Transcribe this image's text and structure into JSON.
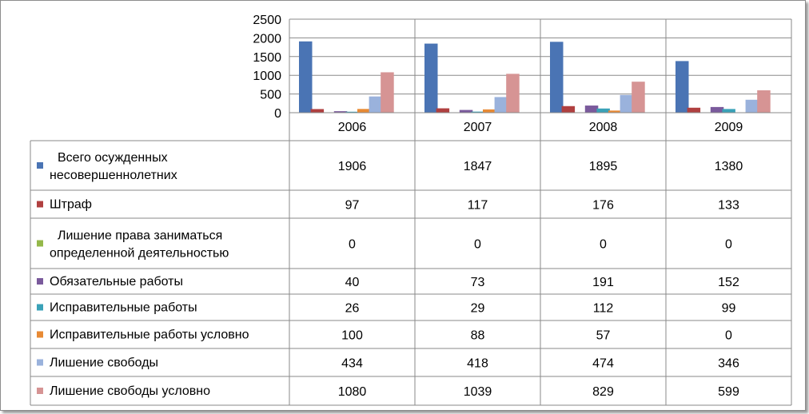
{
  "chart_data": {
    "type": "bar",
    "categories": [
      "2006",
      "2007",
      "2008",
      "2009"
    ],
    "yticks": [
      "0",
      "500",
      "1000",
      "1500",
      "2000",
      "2500"
    ],
    "ylim": [
      0,
      2500
    ],
    "grid": "horizontal",
    "legend": "data-table",
    "series": [
      {
        "name": "Всего осужденных несовершеннолетних",
        "label_lines": [
          "Всего осужденных",
          "несовершеннолетних"
        ],
        "color": "#4a74b4",
        "values": [
          1906,
          1847,
          1895,
          1380
        ]
      },
      {
        "name": "Штраф",
        "label_lines": [
          "Штраф"
        ],
        "color": "#b04040",
        "values": [
          97,
          117,
          176,
          133
        ]
      },
      {
        "name": "Лишение права заниматься определенной деятельностью",
        "label_lines": [
          "Лишение права заниматься",
          "определенной деятельностью"
        ],
        "color": "#94b84a",
        "values": [
          0,
          0,
          0,
          0
        ]
      },
      {
        "name": "Обязательные работы",
        "label_lines": [
          "Обязательные работы"
        ],
        "color": "#7a5a9c",
        "values": [
          40,
          73,
          191,
          152
        ]
      },
      {
        "name": "Исправительные работы",
        "label_lines": [
          "Исправительные работы"
        ],
        "color": "#3aa2b8",
        "values": [
          26,
          29,
          112,
          99
        ]
      },
      {
        "name": "Исправительные работы условно",
        "label_lines": [
          "Исправительные работы условно"
        ],
        "color": "#e88a34",
        "values": [
          100,
          88,
          57,
          0
        ]
      },
      {
        "name": "Лишение свободы",
        "label_lines": [
          "Лишение свободы"
        ],
        "color": "#9ab2dc",
        "values": [
          434,
          418,
          474,
          346
        ]
      },
      {
        "name": "Лишение свободы условно",
        "label_lines": [
          "Лишение свободы условно"
        ],
        "color": "#d69494",
        "values": [
          1080,
          1039,
          829,
          599
        ]
      }
    ]
  }
}
